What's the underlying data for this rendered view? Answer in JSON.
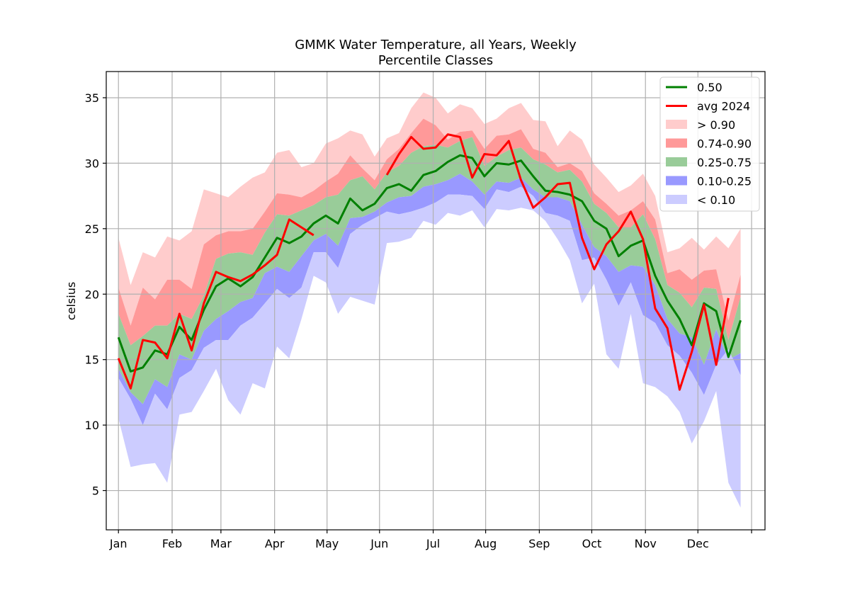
{
  "chart_data": {
    "type": "area",
    "title": "GMMK Water Temperature, all Years, Weekly",
    "subtitle": "Percentile Classes",
    "ylabel": "celsius",
    "xlabel": "",
    "ylim": [
      2,
      37
    ],
    "yticks": [
      5,
      10,
      15,
      20,
      25,
      30,
      35
    ],
    "grid": true,
    "legend_position": "top-right",
    "colors": {
      "median": "#008000",
      "avg": "#ff0000",
      "band_gt90": "#ffcccc",
      "band_74_90": "#ff9999",
      "band_25_75": "#99cc99",
      "band_10_25": "#9999ff",
      "band_lt10": "#ccccff"
    },
    "month_ticks": [
      {
        "label": "Jan",
        "week": 1
      },
      {
        "label": "Feb",
        "week": 5.4
      },
      {
        "label": "Mar",
        "week": 9.4
      },
      {
        "label": "Apr",
        "week": 13.8
      },
      {
        "label": "May",
        "week": 18.1
      },
      {
        "label": "Jun",
        "week": 22.4
      },
      {
        "label": "Jul",
        "week": 26.8
      },
      {
        "label": "Aug",
        "week": 31.1
      },
      {
        "label": "Sep",
        "week": 35.5
      },
      {
        "label": "Oct",
        "week": 39.8
      },
      {
        "label": "Nov",
        "week": 44.2
      },
      {
        "label": "Dec",
        "week": 48.5
      },
      {
        "label": "",
        "week": 52.9
      }
    ],
    "legend": [
      {
        "label": "0.50",
        "kind": "line",
        "color_key": "median"
      },
      {
        "label": "avg 2024",
        "kind": "line",
        "color_key": "avg"
      },
      {
        "label": "> 0.90",
        "kind": "patch",
        "color_key": "band_gt90"
      },
      {
        "label": "0.74-0.90",
        "kind": "patch",
        "color_key": "band_74_90"
      },
      {
        "label": "0.25-0.75",
        "kind": "patch",
        "color_key": "band_25_75"
      },
      {
        "label": "0.10-0.25",
        "kind": "patch",
        "color_key": "band_10_25"
      },
      {
        "label": "< 0.10",
        "kind": "patch",
        "color_key": "band_lt10"
      }
    ],
    "weeks": [
      1,
      2,
      3,
      4,
      5,
      6,
      7,
      8,
      9,
      10,
      11,
      12,
      13,
      14,
      15,
      16,
      17,
      18,
      19,
      20,
      21,
      22,
      23,
      24,
      25,
      26,
      27,
      28,
      29,
      30,
      31,
      32,
      33,
      34,
      35,
      36,
      37,
      38,
      39,
      40,
      41,
      42,
      43,
      44,
      45,
      46,
      47,
      48,
      49,
      50,
      51,
      52
    ],
    "series": [
      {
        "name": "max",
        "values": [
          24.3,
          20.7,
          23.2,
          22.8,
          24.4,
          24.1,
          24.8,
          28.0,
          27.7,
          27.4,
          28.2,
          28.9,
          29.3,
          30.8,
          31.0,
          29.7,
          30.0,
          31.5,
          31.9,
          32.5,
          32.2,
          30.5,
          31.9,
          32.3,
          34.2,
          35.4,
          35.0,
          33.8,
          34.5,
          34.2,
          33.0,
          33.4,
          34.2,
          34.6,
          33.3,
          33.2,
          31.3,
          32.5,
          31.8,
          29.9,
          28.9,
          27.8,
          28.3,
          29.2,
          27.5,
          23.2,
          23.5,
          24.3,
          23.4,
          24.4,
          23.5,
          25.0
        ]
      },
      {
        "name": "p90",
        "values": [
          20.5,
          17.6,
          20.5,
          19.6,
          21.1,
          21.1,
          20.4,
          23.8,
          24.5,
          24.8,
          24.8,
          25.0,
          26.3,
          27.7,
          27.6,
          27.4,
          27.9,
          28.6,
          29.2,
          30.6,
          29.6,
          28.7,
          30.3,
          31.1,
          32.3,
          33.4,
          32.9,
          31.8,
          32.4,
          32.5,
          31.1,
          32.1,
          32.2,
          32.6,
          31.1,
          30.8,
          29.7,
          30.0,
          29.4,
          27.7,
          26.9,
          26.0,
          26.4,
          27.1,
          25.7,
          21.6,
          21.9,
          21.1,
          21.8,
          21.9,
          18.0,
          21.5
        ]
      },
      {
        "name": "p75",
        "values": [
          18.5,
          16.1,
          16.8,
          17.6,
          17.6,
          18.5,
          18.1,
          19.9,
          22.7,
          23.1,
          23.2,
          23.0,
          24.7,
          26.1,
          26.0,
          26.4,
          26.8,
          27.4,
          27.6,
          28.7,
          29.0,
          28.0,
          29.3,
          29.8,
          30.8,
          31.3,
          31.4,
          31.2,
          31.7,
          32.0,
          29.8,
          30.5,
          31.0,
          31.2,
          30.3,
          29.9,
          29.3,
          29.5,
          28.6,
          26.9,
          26.2,
          25.1,
          25.1,
          26.1,
          24.2,
          20.7,
          20.1,
          19.0,
          20.5,
          20.4,
          16.5,
          19.8
        ]
      },
      {
        "name": "p25",
        "values": [
          14.3,
          12.5,
          11.6,
          13.5,
          12.9,
          15.4,
          15.0,
          17.2,
          18.1,
          18.7,
          19.4,
          19.7,
          21.6,
          22.1,
          21.7,
          22.9,
          24.1,
          24.6,
          23.7,
          25.8,
          25.9,
          26.3,
          27.0,
          27.4,
          27.5,
          28.2,
          28.4,
          28.7,
          29.2,
          28.6,
          27.6,
          28.6,
          28.5,
          28.9,
          28.0,
          27.4,
          27.4,
          27.1,
          25.3,
          23.6,
          22.9,
          21.7,
          22.2,
          22.1,
          20.7,
          18.1,
          17.0,
          16.7,
          14.6,
          17.3,
          15.0,
          15.5
        ]
      },
      {
        "name": "p10",
        "values": [
          13.6,
          12.0,
          10.0,
          12.4,
          11.2,
          13.6,
          14.2,
          15.9,
          16.5,
          16.5,
          17.6,
          18.2,
          19.3,
          20.4,
          19.7,
          20.5,
          23.2,
          23.2,
          22.0,
          24.6,
          25.3,
          25.8,
          26.3,
          26.1,
          26.3,
          26.6,
          27.0,
          27.6,
          27.6,
          27.5,
          26.5,
          28.0,
          27.8,
          28.2,
          27.5,
          26.2,
          26.0,
          25.6,
          22.6,
          22.8,
          21.1,
          19.1,
          20.9,
          18.4,
          17.8,
          16.1,
          15.3,
          14.0,
          12.3,
          14.6,
          15.8,
          13.8
        ]
      },
      {
        "name": "min",
        "values": [
          10.5,
          6.8,
          7.0,
          7.1,
          5.6,
          10.8,
          11.0,
          12.6,
          14.3,
          11.9,
          10.8,
          13.2,
          12.8,
          16.0,
          15.1,
          18.1,
          21.4,
          20.9,
          18.5,
          19.8,
          19.5,
          19.2,
          23.9,
          24.0,
          24.3,
          25.6,
          25.3,
          26.2,
          26.0,
          26.4,
          25.1,
          26.5,
          26.4,
          26.6,
          26.4,
          25.6,
          24.2,
          22.6,
          19.3,
          20.8,
          15.4,
          14.3,
          18.5,
          13.2,
          12.9,
          12.2,
          11.0,
          8.6,
          10.3,
          12.6,
          5.6,
          3.7
        ]
      },
      {
        "name": "0.50",
        "values": [
          16.7,
          14.1,
          14.4,
          15.7,
          15.4,
          17.5,
          16.5,
          18.8,
          20.6,
          21.2,
          20.6,
          21.3,
          22.8,
          24.3,
          23.9,
          24.4,
          25.4,
          26.0,
          25.4,
          27.3,
          26.4,
          26.9,
          28.1,
          28.4,
          27.9,
          29.1,
          29.4,
          30.1,
          30.6,
          30.4,
          29.0,
          30.0,
          29.9,
          30.2,
          29.0,
          27.9,
          27.8,
          27.6,
          27.1,
          25.6,
          25.0,
          22.9,
          23.7,
          24.1,
          21.4,
          19.5,
          18.1,
          16.1,
          19.3,
          18.7,
          15.2,
          18.0
        ]
      },
      {
        "name": "avg 2024",
        "values": [
          15.1,
          12.8,
          16.5,
          16.3,
          15.1,
          18.5,
          15.7,
          19.3,
          21.7,
          21.3,
          21.0,
          21.5,
          22.2,
          23.0,
          25.7,
          25.1,
          24.5,
          null,
          null,
          null,
          null,
          null,
          29.1,
          30.7,
          32.0,
          31.1,
          31.2,
          32.2,
          32.0,
          28.9,
          30.7,
          30.6,
          31.7,
          28.7,
          26.6,
          27.4,
          28.4,
          28.5,
          24.3,
          21.9,
          23.8,
          24.8,
          26.3,
          24.2,
          18.9,
          17.4,
          12.7,
          15.6,
          19.2,
          14.6,
          19.7,
          null
        ]
      }
    ]
  }
}
